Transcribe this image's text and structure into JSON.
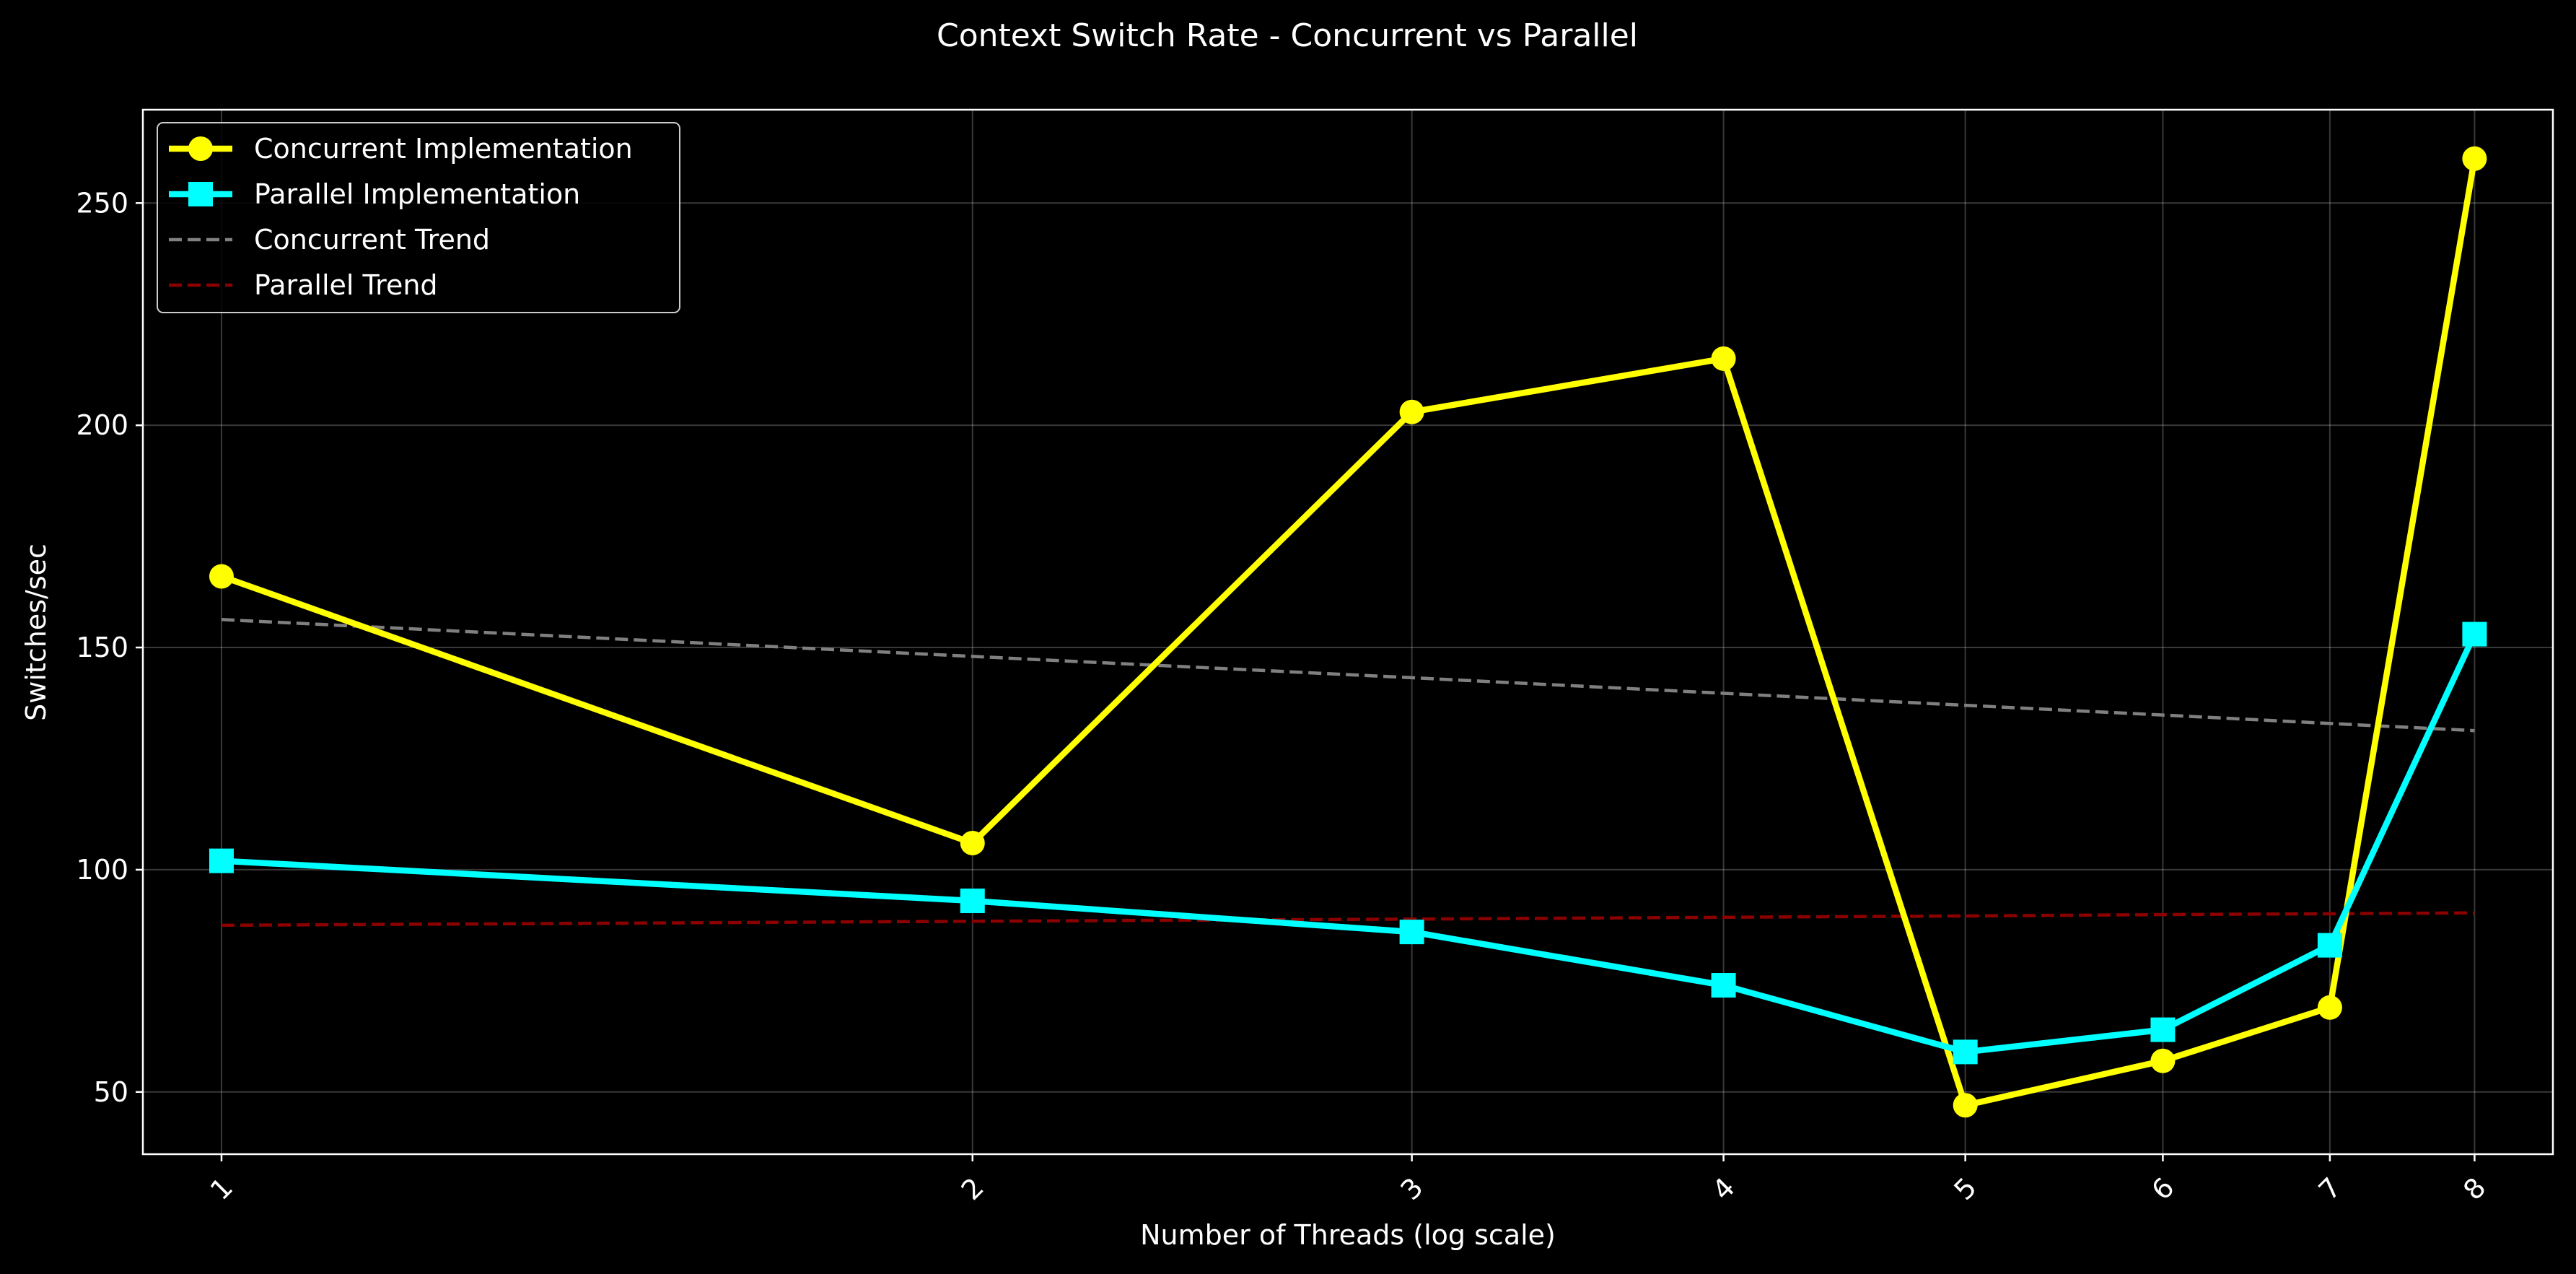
{
  "chart_data": {
    "type": "line",
    "title": "Context Switch Rate - Concurrent vs Parallel",
    "xlabel": "Number of Threads (log scale)",
    "ylabel": "Switches/sec",
    "x_scale": "log",
    "x": [
      1,
      2,
      3,
      4,
      5,
      6,
      7,
      8
    ],
    "xlim": [
      0.93,
      8.6
    ],
    "ylim": [
      36,
      271
    ],
    "xticks": [
      "1",
      "2",
      "3",
      "4",
      "5",
      "6",
      "7",
      "8"
    ],
    "yticks": [
      50,
      100,
      150,
      200,
      250
    ],
    "grid": true,
    "legend_position": "upper-left",
    "series": [
      {
        "name": "Concurrent Implementation",
        "style": "solid",
        "marker": "circle",
        "color": "#ffff00",
        "values": [
          166,
          106,
          203,
          215,
          47,
          57,
          69,
          260
        ]
      },
      {
        "name": "Parallel Implementation",
        "style": "solid",
        "marker": "square",
        "color": "#00ffff",
        "values": [
          102,
          93,
          86,
          74,
          59,
          64,
          83,
          153
        ]
      },
      {
        "name": "Concurrent Trend",
        "style": "dashed",
        "marker": "none",
        "color": "#808080",
        "values": [
          156.3,
          148.0,
          143.2,
          139.7,
          137.0,
          134.8,
          132.9,
          131.3
        ]
      },
      {
        "name": "Parallel Trend",
        "style": "dashed",
        "marker": "none",
        "color": "#8b0000",
        "values": [
          87.5,
          88.4,
          88.9,
          89.3,
          89.6,
          89.9,
          90.1,
          90.3
        ]
      }
    ]
  }
}
